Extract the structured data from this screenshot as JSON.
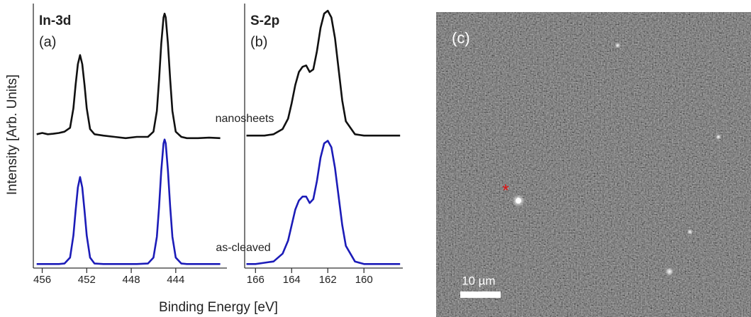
{
  "chart_data": [
    {
      "type": "line",
      "title": "In-3d",
      "subtitle": "(a)",
      "y_label": "Intensity [Arb. Units]",
      "x_label": "Binding Energy [eV]",
      "annotations": [
        "nanosheets",
        "as-cleaved"
      ],
      "xlim": [
        456.8,
        439.4
      ],
      "xticks": [
        456,
        452,
        448,
        444
      ],
      "ylim": [
        0,
        10
      ],
      "x": [
        456.5,
        456,
        455.5,
        455,
        454.5,
        454,
        453.5,
        453.2,
        453,
        452.8,
        452.6,
        452.4,
        452.2,
        452,
        451.7,
        451.3,
        450.5,
        449.5,
        448.5,
        447.5,
        446.5,
        446,
        445.7,
        445.5,
        445.3,
        445.1,
        445,
        444.9,
        444.7,
        444.5,
        444.3,
        444,
        443.5,
        443,
        442.5,
        442,
        441,
        440
      ],
      "series": [
        {
          "name": "nanosheets",
          "color": "#111111",
          "values": [
            5.1,
            5.15,
            5.1,
            5.12,
            5.15,
            5.2,
            5.35,
            6.1,
            7.0,
            7.8,
            8.15,
            7.8,
            7.0,
            6.1,
            5.3,
            5.1,
            5.05,
            5.0,
            4.95,
            5.0,
            5.0,
            5.2,
            6.0,
            7.2,
            8.6,
            9.6,
            9.75,
            9.6,
            8.6,
            7.2,
            6.0,
            5.2,
            5.0,
            4.95,
            4.95,
            4.95,
            4.97,
            4.95
          ]
        },
        {
          "name": "as-cleaved",
          "color": "#1c1cb8",
          "values": [
            0.1,
            0.1,
            0.1,
            0.1,
            0.1,
            0.12,
            0.35,
            1.2,
            2.15,
            3.05,
            3.45,
            3.05,
            2.15,
            1.2,
            0.35,
            0.12,
            0.1,
            0.1,
            0.1,
            0.1,
            0.12,
            0.35,
            1.15,
            2.3,
            3.7,
            4.75,
            4.9,
            4.75,
            3.7,
            2.3,
            1.15,
            0.35,
            0.12,
            0.1,
            0.1,
            0.1,
            0.1,
            0.1
          ]
        }
      ]
    },
    {
      "type": "line",
      "title": "S-2p",
      "subtitle": "(b)",
      "xlim": [
        166.6,
        157.85
      ],
      "xticks": [
        166,
        164,
        162,
        160
      ],
      "ylim": [
        0,
        10
      ],
      "x": [
        166.5,
        166,
        165.5,
        165,
        164.5,
        164.2,
        164,
        163.8,
        163.6,
        163.4,
        163.2,
        163,
        162.8,
        162.6,
        162.4,
        162.2,
        162,
        161.8,
        161.6,
        161.4,
        161.2,
        161,
        160.5,
        160,
        159.5,
        159,
        158
      ],
      "series": [
        {
          "name": "nanosheets",
          "color": "#111111",
          "values": [
            5.05,
            5.05,
            5.05,
            5.1,
            5.3,
            5.7,
            6.3,
            7.0,
            7.5,
            7.7,
            7.75,
            7.5,
            7.6,
            8.3,
            9.2,
            9.75,
            9.86,
            9.6,
            8.8,
            7.6,
            6.4,
            5.6,
            5.1,
            5.05,
            5.05,
            5.05,
            5.05
          ]
        },
        {
          "name": "as-cleaved",
          "color": "#1c1cb8",
          "values": [
            0.1,
            0.1,
            0.15,
            0.2,
            0.5,
            1.0,
            1.6,
            2.2,
            2.55,
            2.7,
            2.7,
            2.45,
            2.6,
            3.3,
            4.2,
            4.75,
            4.85,
            4.6,
            3.8,
            2.7,
            1.6,
            0.8,
            0.2,
            0.1,
            0.1,
            0.1,
            0.1
          ]
        }
      ]
    }
  ],
  "image": {
    "label": "(c)",
    "scale_bar": "10 µm",
    "marker": "*"
  }
}
